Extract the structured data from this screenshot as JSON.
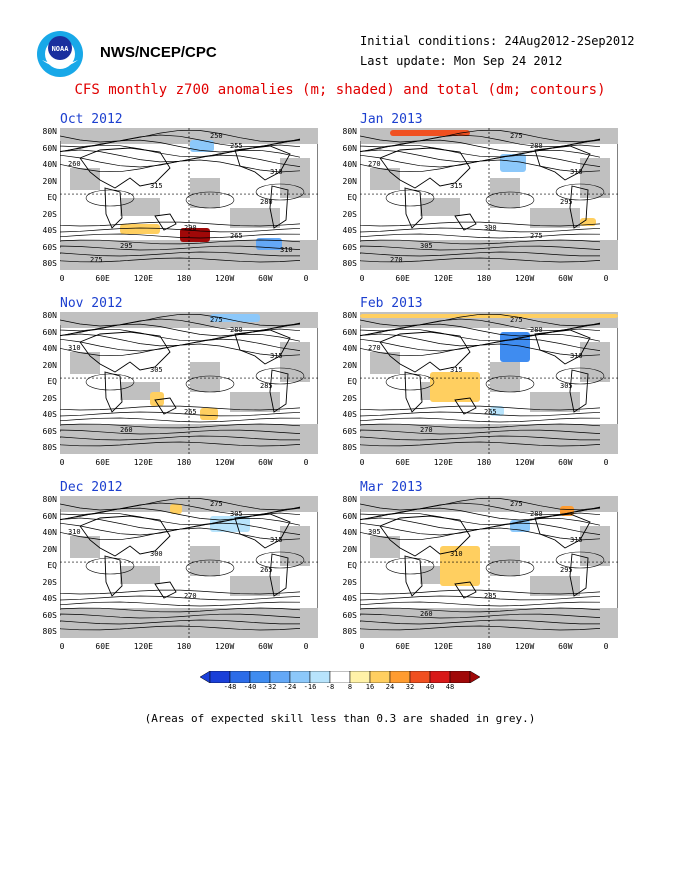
{
  "header": {
    "agency": "NWS/NCEP/CPC",
    "initial_conditions": "Initial conditions: 24Aug2012-2Sep2012",
    "last_update": "Last update: Mon Sep 24 2012",
    "logo_text": "NOAA"
  },
  "title": "CFS monthly z700 anomalies (m; shaded) and total (dm; contours)",
  "footnote": "(Areas of expected skill less than 0.3 are shaded in grey.)",
  "colors": {
    "map_bg": "#ffffff",
    "skill_grey": "#c0c0c0",
    "contour": "#000000",
    "panel_label": "#1c3fcf",
    "title": "#e00000"
  },
  "chart_data": {
    "type": "heatmap",
    "lat_ticks": [
      "80N",
      "60N",
      "40N",
      "20N",
      "EQ",
      "20S",
      "40S",
      "60S",
      "80S"
    ],
    "lon_ticks": [
      "0",
      "60E",
      "120E",
      "180",
      "120W",
      "60W",
      "0"
    ],
    "colorbar": {
      "ticks": [
        "-48",
        "-40",
        "-32",
        "-24",
        "-16",
        "-8",
        "8",
        "16",
        "24",
        "32",
        "40",
        "48"
      ],
      "colors": [
        "#1a3fd8",
        "#2c6ce8",
        "#3f8cf0",
        "#64a8f6",
        "#8cc8fa",
        "#b8e4fc",
        "#ffffff",
        "#fff2a8",
        "#ffcf60",
        "#ff9c30",
        "#f05020",
        "#d81818",
        "#a00808"
      ]
    },
    "panels": [
      {
        "month": "Oct 2012",
        "contour_labels": [
          "250",
          "255",
          "260",
          "310",
          "315",
          "280",
          "290",
          "295",
          "265",
          "275",
          "310"
        ]
      },
      {
        "month": "Jan 2013",
        "contour_labels": [
          "275",
          "280",
          "270",
          "310",
          "315",
          "295",
          "300",
          "305",
          "275",
          "270"
        ]
      },
      {
        "month": "Nov 2012",
        "contour_labels": [
          "275",
          "280",
          "310",
          "315",
          "305",
          "285",
          "265",
          "260"
        ]
      },
      {
        "month": "Feb 2013",
        "contour_labels": [
          "275",
          "280",
          "270",
          "310",
          "315",
          "305",
          "265",
          "270"
        ]
      },
      {
        "month": "Dec 2012",
        "contour_labels": [
          "275",
          "305",
          "310",
          "315",
          "300",
          "265",
          "270"
        ]
      },
      {
        "month": "Mar 2013",
        "contour_labels": [
          "275",
          "280",
          "305",
          "315",
          "310",
          "295",
          "285",
          "260"
        ]
      }
    ]
  }
}
